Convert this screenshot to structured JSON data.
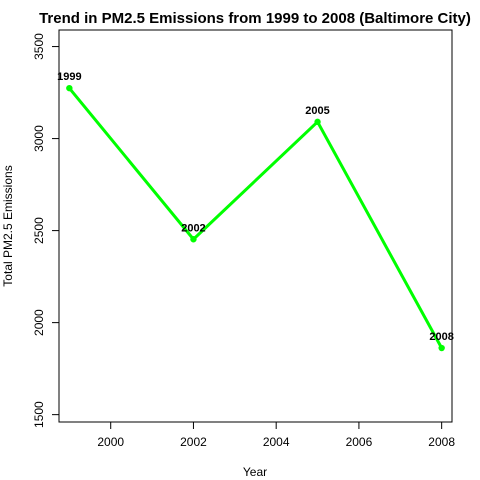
{
  "chart_data": {
    "type": "line",
    "title": "Trend in PM2.5 Emissions from 1999 to 2008 (Baltimore City)",
    "xlabel": "Year",
    "ylabel": "Total PM2.5 Emissions",
    "x": [
      1999,
      2002,
      2005,
      2008
    ],
    "series": [
      {
        "values": [
          3274,
          2453,
          3091,
          1862
        ]
      }
    ],
    "point_labels": [
      "1999",
      "2002",
      "2005",
      "2008"
    ],
    "xlim": [
      1998.75,
      2008.25
    ],
    "ylim": [
      1460,
      3590
    ],
    "x_ticks": [
      2000,
      2002,
      2004,
      2006,
      2008
    ],
    "x_tick_labels": [
      "2000",
      "2002",
      "2004",
      "2006",
      "2008"
    ],
    "y_ticks": [
      1500,
      2000,
      2500,
      3000,
      3500
    ],
    "y_tick_labels": [
      "1500",
      "2000",
      "2500",
      "3000",
      "3500"
    ],
    "grid": false,
    "colors": {
      "line": "#00ff00",
      "points": "#00ff00",
      "axis": "#000000"
    }
  }
}
